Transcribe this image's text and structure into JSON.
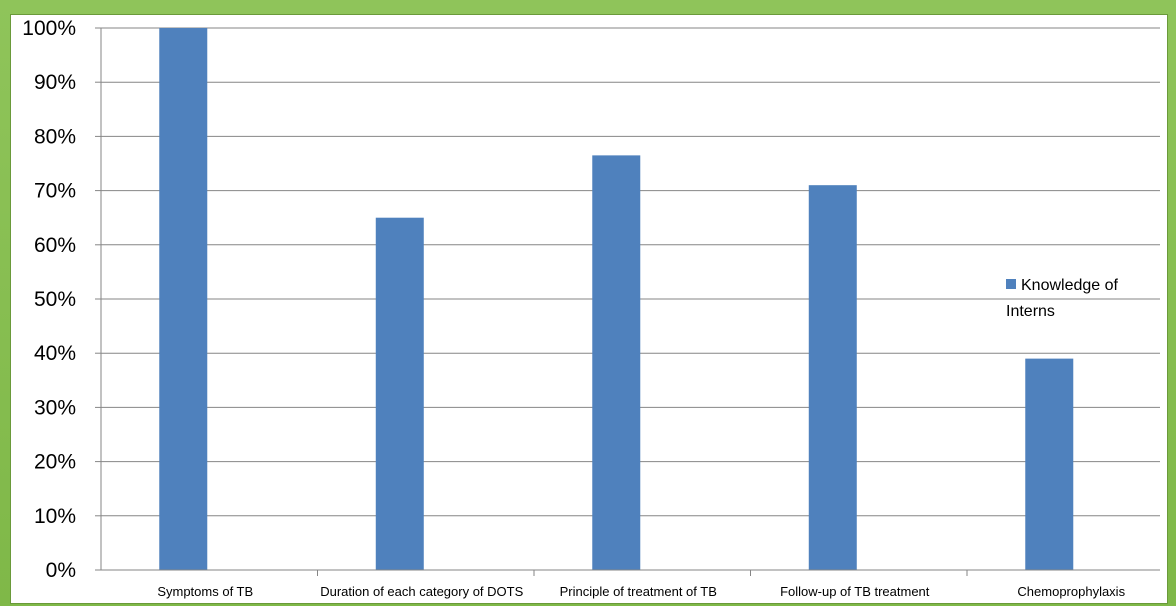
{
  "chart_data": {
    "type": "bar",
    "categories": [
      "Symptoms of TB",
      "Duration of each category of DOTS",
      "Principle of treatment of TB",
      "Follow-up of TB treatment",
      "Chemoprophylaxis"
    ],
    "series": [
      {
        "name": "Knowledge of Interns",
        "values": [
          100,
          65,
          76.5,
          71,
          39
        ]
      }
    ],
    "ylim": [
      0,
      100
    ],
    "yticks": [
      "0%",
      "10%",
      "20%",
      "30%",
      "40%",
      "50%",
      "60%",
      "70%",
      "80%",
      "90%",
      "100%"
    ],
    "grid": true,
    "legend_position": "right",
    "legend_lines": [
      "Knowledge of",
      "Interns"
    ],
    "colors": {
      "bar": "#4f81bd",
      "grid": "#868686",
      "frame": "#8cc152"
    }
  }
}
